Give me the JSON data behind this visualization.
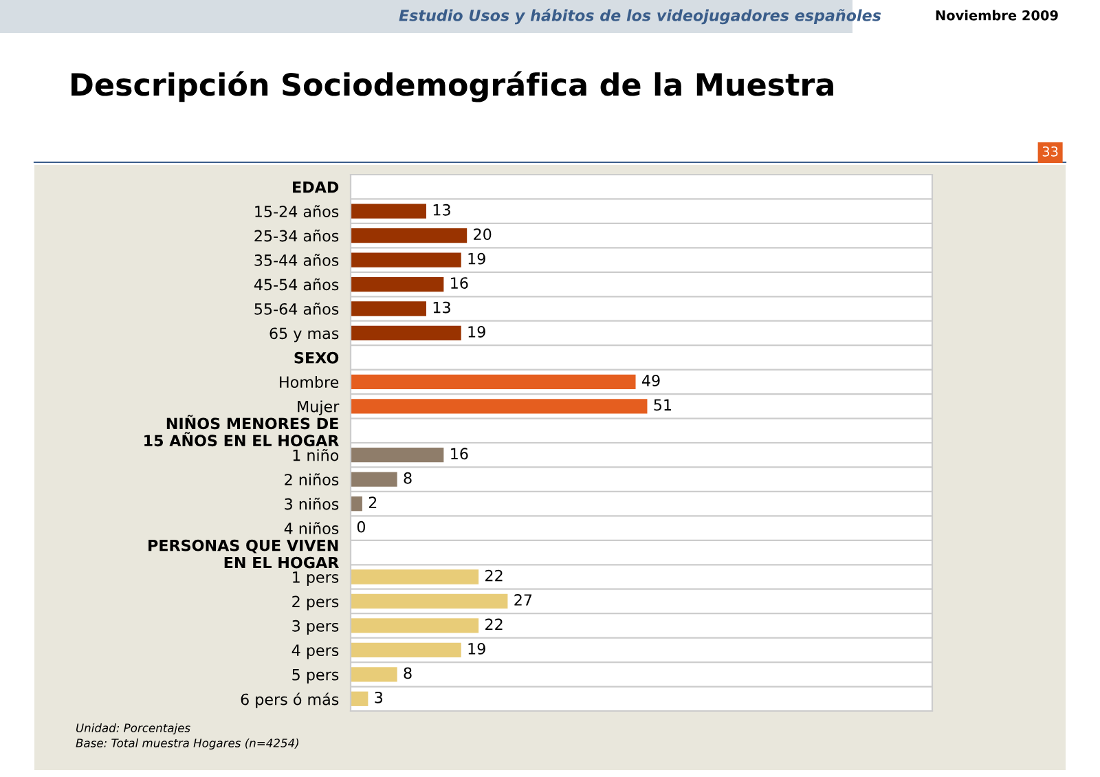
{
  "chart_data": {
    "type": "bar",
    "orientation": "horizontal",
    "title": "Descripción Sociodemográfica de la Muestra",
    "subtitle": "Estudio Usos y hábitos de los videojugadores españoles",
    "categories": [
      "EDAD",
      "15-24 años",
      "25-34 años",
      "35-44 años",
      "45-54 años",
      "55-64 años",
      "65 y mas",
      "SEXO",
      "Hombre",
      "Mujer",
      "NIÑOS MENORES DE\n15 AÑOS EN EL HOGAR",
      "1 niño",
      "2 niños",
      "3 niños",
      "4 niños",
      "PERSONAS QUE VIVEN\nEN EL HOGAR",
      "1 pers",
      "2 pers",
      "3 pers",
      "4 pers",
      "5 pers",
      "6 pers ó más"
    ],
    "values": [
      null,
      13,
      20,
      19,
      16,
      13,
      19,
      null,
      49,
      51,
      null,
      16,
      8,
      2,
      0,
      null,
      22,
      27,
      22,
      19,
      8,
      3
    ],
    "colors": [
      null,
      "#993300",
      "#993300",
      "#993300",
      "#993300",
      "#993300",
      "#993300",
      null,
      "#e55e1f",
      "#e55e1f",
      null,
      "#8f7d6a",
      "#8f7d6a",
      "#8f7d6a",
      "#8f7d6a",
      null,
      "#e8cc78",
      "#e8cc78",
      "#e8cc78",
      "#e8cc78",
      "#e8cc78",
      "#e8cc78"
    ],
    "xlim": [
      0,
      100
    ],
    "data_labels": true,
    "grid": "y",
    "tick_labels": "y",
    "annotations": [
      "Noviembre 2009",
      "33",
      "Unidad: Porcentajes",
      "Base: Total muestra Hogares (n=4254)"
    ]
  }
}
